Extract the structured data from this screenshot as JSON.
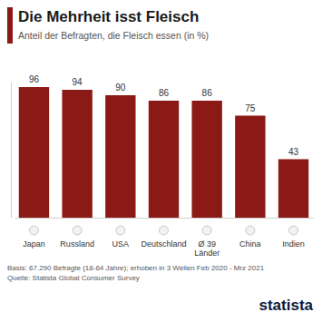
{
  "chart_data": {
    "type": "bar",
    "title": "Die Mehrheit isst Fleisch",
    "subtitle": "Anteil der Befragten, die Fleisch essen (in %)",
    "categories": [
      "Japan",
      "Russland",
      "USA",
      "Deutschland",
      "Ø 39 Länder",
      "China",
      "Indien"
    ],
    "values": [
      96,
      94,
      90,
      86,
      86,
      75,
      43
    ],
    "color": "#8b1a16",
    "ylim": [
      0,
      100
    ],
    "data_labels": true,
    "tick_labels": "x",
    "annotations": [
      "Basis: 67.290 Befragte (18-64 Jahre); erhoben in 3 Wellen Feb 2020 - Mrz 2021",
      "Quelle: Statista Global Consumer Survey"
    ],
    "logo": "statista"
  }
}
